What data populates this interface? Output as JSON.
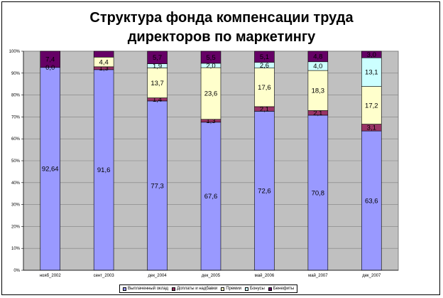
{
  "chart_data": {
    "type": "bar",
    "stacked": "percent",
    "title_line1": "Структура фонда компенсации труда",
    "title_line2": "директоров по маркетингу",
    "xlabel": "",
    "ylabel": "",
    "ylim": [
      0,
      100
    ],
    "y_ticks": [
      "0%",
      "10%",
      "20%",
      "30%",
      "40%",
      "50%",
      "60%",
      "70%",
      "80%",
      "90%",
      "100%"
    ],
    "categories": [
      "нояб_2002",
      "сент_2003",
      "дек_2004",
      "дек_2005",
      "май_2006",
      "май_2007",
      "дек_2007"
    ],
    "grid": true,
    "legend_position": "bottom",
    "series": [
      {
        "name": "Выплаченный оклад",
        "color": "#9999FF",
        "values": [
          92.64,
          91.6,
          77.3,
          67.6,
          72.6,
          70.8,
          63.6
        ],
        "labels": [
          "92,64",
          "91,6",
          "77,3",
          "67,6",
          "72,6",
          "70,8",
          "63,6"
        ]
      },
      {
        "name": "Доплаты и надбавки",
        "color": "#993366",
        "values": [
          0.0,
          1.3,
          1.4,
          1.3,
          2.1,
          2.1,
          3.1
        ],
        "labels": [
          "",
          "1,3",
          "1,4",
          "1,3",
          "2,1",
          "2,1",
          "3,1"
        ]
      },
      {
        "name": "Премии",
        "color": "#FFFFCC",
        "values": [
          0.0,
          4.4,
          13.7,
          23.6,
          17.6,
          18.3,
          17.2
        ],
        "labels": [
          "",
          "4,4",
          "13,7",
          "23,6",
          "17,6",
          "18,3",
          "17,2"
        ]
      },
      {
        "name": "Бонусы",
        "color": "#CCFFFF",
        "values": [
          0.0,
          0.0,
          1.9,
          2.0,
          2.6,
          4.0,
          13.1
        ],
        "labels": [
          "",
          "",
          "1,9",
          "2,0",
          "2,6",
          "4,0",
          "13,1"
        ]
      },
      {
        "name": "Бенефиты",
        "color": "#660066",
        "values": [
          7.4,
          2.7,
          5.7,
          5.5,
          5.1,
          4.8,
          3.0
        ],
        "labels": [
          "7,4",
          "",
          "5,7",
          "5,5",
          "5,1",
          "4,8",
          "3,0"
        ]
      }
    ],
    "extra_labels": [
      {
        "category_index": 0,
        "text": "0,0",
        "near_series": 1
      }
    ]
  }
}
